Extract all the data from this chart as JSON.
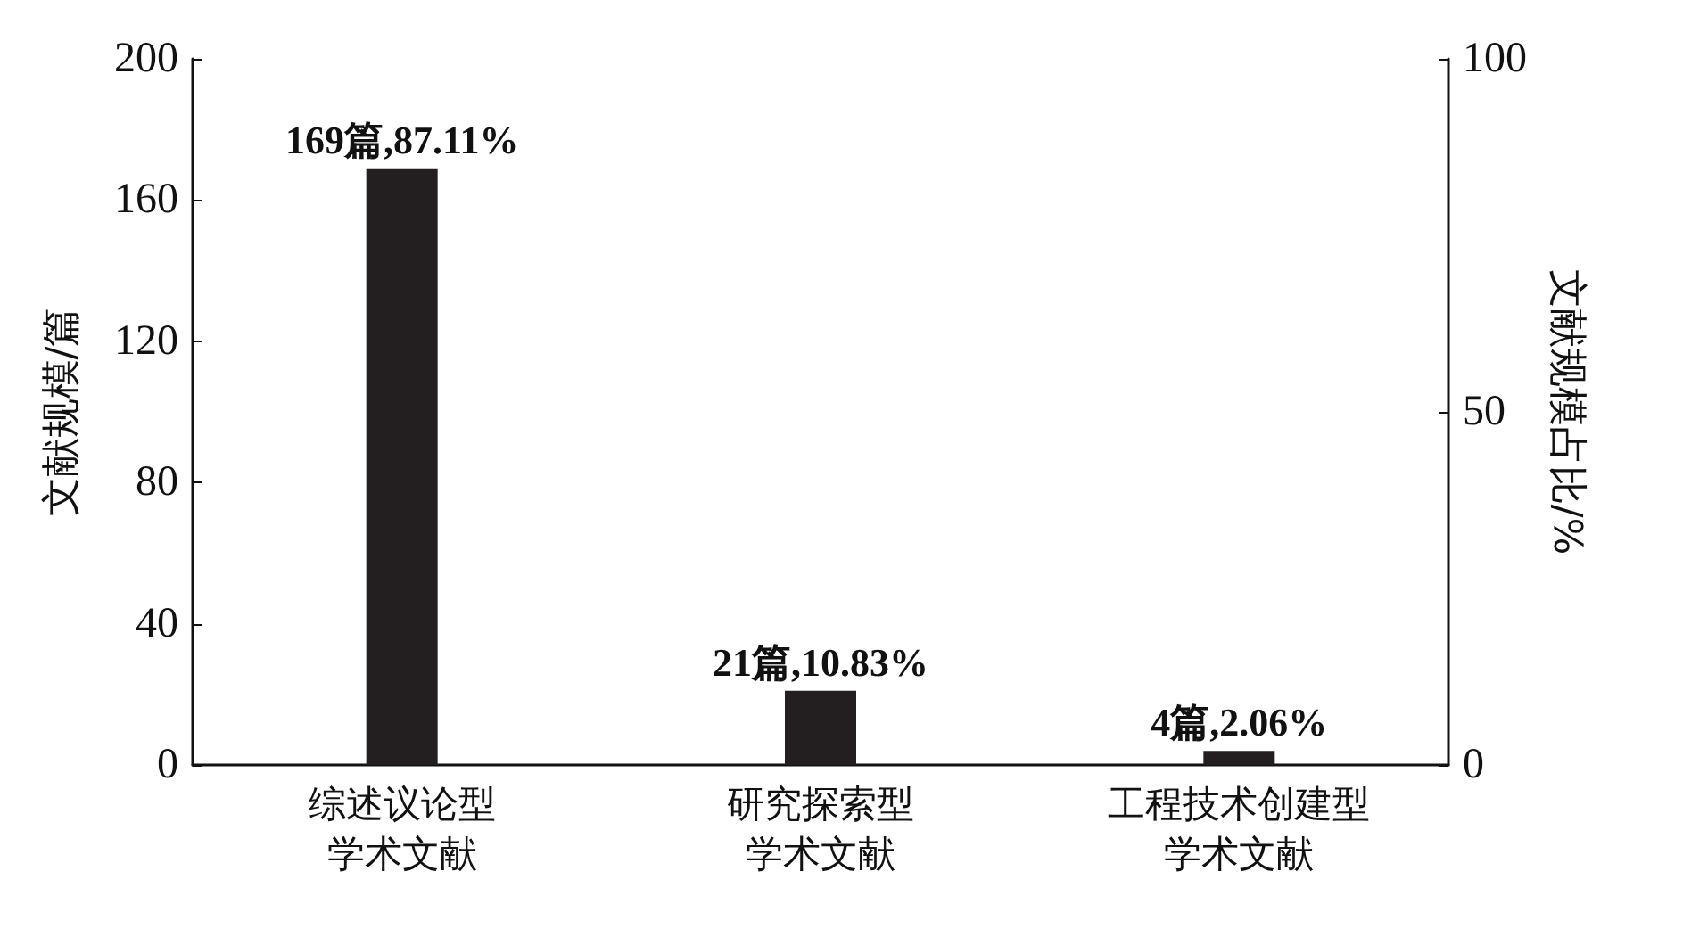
{
  "chart_data": {
    "type": "bar",
    "ylabel": "文献规模/篇",
    "y2label": "文献规模占比/%",
    "categories": [
      "综述议论型学术文献",
      "研究探索型学术文献",
      "工程技术创建型学术文献"
    ],
    "values": [
      169,
      21,
      4
    ],
    "color": "#231f20",
    "value_labels": [
      "169篇,87.11%",
      "21篇,10.83%",
      "4篇,2.06%"
    ],
    "ylim": [
      0,
      200
    ],
    "yticks": [
      0,
      40,
      80,
      120,
      160,
      200
    ],
    "y2lim": [
      0,
      100
    ],
    "y2ticks": [
      0,
      50,
      100
    ],
    "grid": false
  }
}
